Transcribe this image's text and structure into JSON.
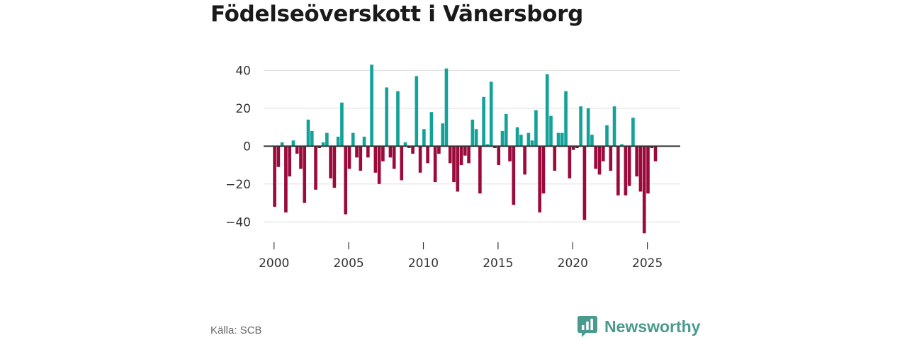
{
  "chart_data": {
    "type": "bar",
    "title": "Födelseöverskott i Vänersborg",
    "xlabel": "",
    "ylabel": "",
    "ylim": [
      -50,
      45
    ],
    "xlim": [
      1999.3,
      2027.2
    ],
    "yticks": [
      -40,
      -20,
      0,
      20,
      40
    ],
    "ytick_labels": [
      "−40",
      "−20",
      "0",
      "20",
      "40"
    ],
    "xticks": [
      2000,
      2005,
      2010,
      2015,
      2020,
      2025
    ],
    "xtick_labels": [
      "2000",
      "2005",
      "2010",
      "2015",
      "2020",
      "2025"
    ],
    "grid": true,
    "colors": {
      "positive": "#12a29a",
      "negative": "#9c0a3b",
      "zero_line": "#333333",
      "grid": "#dddddd"
    },
    "bar_width_years": 0.22,
    "points": [
      {
        "x": 2000.04,
        "y": -32
      },
      {
        "x": 2000.29,
        "y": -11
      },
      {
        "x": 2000.54,
        "y": 2
      },
      {
        "x": 2000.79,
        "y": -35
      },
      {
        "x": 2001.04,
        "y": -16
      },
      {
        "x": 2001.29,
        "y": 3
      },
      {
        "x": 2001.54,
        "y": -4
      },
      {
        "x": 2001.79,
        "y": -12
      },
      {
        "x": 2002.04,
        "y": -30
      },
      {
        "x": 2002.29,
        "y": 14
      },
      {
        "x": 2002.54,
        "y": 8
      },
      {
        "x": 2002.79,
        "y": -23
      },
      {
        "x": 2003.04,
        "y": -1
      },
      {
        "x": 2003.29,
        "y": 2
      },
      {
        "x": 2003.54,
        "y": 7
      },
      {
        "x": 2003.79,
        "y": -17
      },
      {
        "x": 2004.04,
        "y": -22
      },
      {
        "x": 2004.29,
        "y": 5
      },
      {
        "x": 2004.54,
        "y": 23
      },
      {
        "x": 2004.79,
        "y": -36
      },
      {
        "x": 2005.04,
        "y": -12
      },
      {
        "x": 2005.29,
        "y": 7
      },
      {
        "x": 2005.54,
        "y": -6
      },
      {
        "x": 2005.79,
        "y": -13
      },
      {
        "x": 2006.04,
        "y": 5
      },
      {
        "x": 2006.29,
        "y": -6
      },
      {
        "x": 2006.54,
        "y": 43
      },
      {
        "x": 2006.79,
        "y": -14
      },
      {
        "x": 2007.04,
        "y": -20
      },
      {
        "x": 2007.29,
        "y": -8
      },
      {
        "x": 2007.54,
        "y": 31
      },
      {
        "x": 2007.79,
        "y": -6
      },
      {
        "x": 2008.04,
        "y": -12
      },
      {
        "x": 2008.29,
        "y": 29
      },
      {
        "x": 2008.54,
        "y": -18
      },
      {
        "x": 2008.79,
        "y": 2
      },
      {
        "x": 2009.04,
        "y": -1
      },
      {
        "x": 2009.29,
        "y": -4
      },
      {
        "x": 2009.54,
        "y": 37
      },
      {
        "x": 2009.79,
        "y": -14
      },
      {
        "x": 2010.04,
        "y": 9
      },
      {
        "x": 2010.29,
        "y": -9
      },
      {
        "x": 2010.54,
        "y": 18
      },
      {
        "x": 2010.79,
        "y": -19
      },
      {
        "x": 2011.04,
        "y": -4
      },
      {
        "x": 2011.29,
        "y": 12
      },
      {
        "x": 2011.54,
        "y": 41
      },
      {
        "x": 2011.79,
        "y": -9
      },
      {
        "x": 2012.04,
        "y": -19
      },
      {
        "x": 2012.29,
        "y": -24
      },
      {
        "x": 2012.54,
        "y": -10
      },
      {
        "x": 2012.79,
        "y": -5
      },
      {
        "x": 2013.04,
        "y": -9
      },
      {
        "x": 2013.29,
        "y": 14
      },
      {
        "x": 2013.54,
        "y": 9
      },
      {
        "x": 2013.79,
        "y": -25
      },
      {
        "x": 2014.04,
        "y": 26
      },
      {
        "x": 2014.29,
        "y": 1
      },
      {
        "x": 2014.54,
        "y": 34
      },
      {
        "x": 2014.79,
        "y": -1
      },
      {
        "x": 2015.04,
        "y": -10
      },
      {
        "x": 2015.29,
        "y": 8
      },
      {
        "x": 2015.54,
        "y": 17
      },
      {
        "x": 2015.79,
        "y": -8
      },
      {
        "x": 2016.04,
        "y": -31
      },
      {
        "x": 2016.29,
        "y": 10
      },
      {
        "x": 2016.54,
        "y": 6
      },
      {
        "x": 2016.79,
        "y": -15
      },
      {
        "x": 2017.04,
        "y": 7
      },
      {
        "x": 2017.29,
        "y": 3
      },
      {
        "x": 2017.54,
        "y": 19
      },
      {
        "x": 2017.79,
        "y": -35
      },
      {
        "x": 2018.04,
        "y": -25
      },
      {
        "x": 2018.29,
        "y": 38
      },
      {
        "x": 2018.54,
        "y": 16
      },
      {
        "x": 2018.79,
        "y": -13
      },
      {
        "x": 2019.04,
        "y": 7
      },
      {
        "x": 2019.29,
        "y": 7
      },
      {
        "x": 2019.54,
        "y": 29
      },
      {
        "x": 2019.79,
        "y": -17
      },
      {
        "x": 2020.04,
        "y": -2
      },
      {
        "x": 2020.29,
        "y": -1
      },
      {
        "x": 2020.54,
        "y": 21
      },
      {
        "x": 2020.79,
        "y": -39
      },
      {
        "x": 2021.04,
        "y": 20
      },
      {
        "x": 2021.29,
        "y": 6
      },
      {
        "x": 2021.54,
        "y": -12
      },
      {
        "x": 2021.79,
        "y": -15
      },
      {
        "x": 2022.04,
        "y": -8
      },
      {
        "x": 2022.29,
        "y": 11
      },
      {
        "x": 2022.54,
        "y": -13
      },
      {
        "x": 2022.79,
        "y": 21
      },
      {
        "x": 2023.04,
        "y": -26
      },
      {
        "x": 2023.29,
        "y": 1
      },
      {
        "x": 2023.54,
        "y": -26
      },
      {
        "x": 2023.79,
        "y": -21
      },
      {
        "x": 2024.04,
        "y": 15
      },
      {
        "x": 2024.29,
        "y": -16
      },
      {
        "x": 2024.54,
        "y": -24
      },
      {
        "x": 2024.79,
        "y": -46
      },
      {
        "x": 2025.04,
        "y": -25
      },
      {
        "x": 2025.29,
        "y": -1
      },
      {
        "x": 2025.54,
        "y": -8
      }
    ]
  },
  "footer": {
    "source": "Källa: SCB",
    "brand": "Newsworthy"
  }
}
